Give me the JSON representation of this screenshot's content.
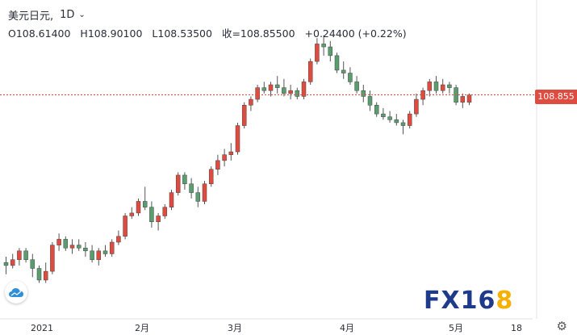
{
  "header": {
    "symbol": "美元日元,",
    "interval": "1D",
    "open": "O108.61400",
    "high": "H108.90100",
    "low": "L108.53500",
    "close": "收=108.85500",
    "change": "+0.24400 (+0.22%)"
  },
  "price_label": "108.855",
  "watermark": {
    "text_main": "FX16",
    "text_accent": "8"
  },
  "colors": {
    "up": "#e04b3f",
    "down": "#5a9e6f",
    "price_line": "#e04b3f",
    "brand": "#1e3a8a",
    "brand_accent": "#f5b000"
  },
  "icons": {
    "cloud": "cloud-icon",
    "settings": "gear-icon",
    "dropdown": "chevron-down-icon"
  },
  "chart_data": {
    "type": "candlestick",
    "symbol": "USD/JPY",
    "interval": "1D",
    "x_ticks": [
      "2021",
      "2月",
      "3月",
      "4月",
      "5月",
      "18"
    ],
    "last_price": 108.855,
    "ohlc_last": {
      "open": 108.614,
      "high": 108.901,
      "low": 108.535,
      "close": 108.855
    },
    "candles": [
      [
        103.1,
        103.3,
        102.7,
        103.0
      ],
      [
        103.0,
        103.4,
        102.9,
        103.2
      ],
      [
        103.2,
        103.6,
        103.0,
        103.5
      ],
      [
        103.5,
        103.6,
        103.1,
        103.2
      ],
      [
        103.2,
        103.4,
        102.6,
        102.9
      ],
      [
        102.9,
        103.0,
        102.4,
        102.5
      ],
      [
        102.5,
        103.1,
        102.4,
        102.8
      ],
      [
        102.8,
        103.8,
        102.7,
        103.7
      ],
      [
        103.7,
        104.1,
        103.5,
        103.9
      ],
      [
        103.9,
        104.0,
        103.5,
        103.6
      ],
      [
        103.6,
        103.9,
        103.4,
        103.7
      ],
      [
        103.7,
        103.9,
        103.5,
        103.6
      ],
      [
        103.6,
        103.8,
        103.3,
        103.5
      ],
      [
        103.5,
        103.7,
        103.1,
        103.2
      ],
      [
        103.2,
        103.6,
        103.0,
        103.5
      ],
      [
        103.5,
        103.7,
        103.3,
        103.4
      ],
      [
        103.4,
        103.9,
        103.3,
        103.8
      ],
      [
        103.8,
        104.2,
        103.7,
        104.0
      ],
      [
        104.0,
        104.8,
        103.9,
        104.7
      ],
      [
        104.7,
        105.0,
        104.6,
        104.8
      ],
      [
        104.8,
        105.3,
        104.7,
        105.2
      ],
      [
        105.2,
        105.7,
        104.9,
        105.0
      ],
      [
        105.0,
        105.2,
        104.3,
        104.5
      ],
      [
        104.5,
        104.8,
        104.2,
        104.7
      ],
      [
        104.7,
        105.1,
        104.6,
        105.0
      ],
      [
        105.0,
        105.6,
        104.9,
        105.5
      ],
      [
        105.5,
        106.2,
        105.4,
        106.1
      ],
      [
        106.1,
        106.2,
        105.6,
        105.8
      ],
      [
        105.8,
        106.0,
        105.3,
        105.5
      ],
      [
        105.5,
        105.7,
        105.0,
        105.2
      ],
      [
        105.2,
        105.9,
        105.1,
        105.8
      ],
      [
        105.8,
        106.4,
        105.7,
        106.3
      ],
      [
        106.3,
        106.8,
        106.1,
        106.6
      ],
      [
        106.6,
        107.0,
        106.4,
        106.8
      ],
      [
        106.8,
        107.2,
        106.6,
        106.9
      ],
      [
        106.9,
        107.9,
        106.8,
        107.8
      ],
      [
        107.8,
        108.6,
        107.7,
        108.5
      ],
      [
        108.5,
        108.8,
        108.3,
        108.7
      ],
      [
        108.7,
        109.2,
        108.6,
        109.1
      ],
      [
        109.1,
        109.3,
        108.9,
        109.0
      ],
      [
        109.0,
        109.3,
        108.8,
        109.2
      ],
      [
        109.2,
        109.5,
        108.9,
        109.1
      ],
      [
        109.1,
        109.4,
        108.8,
        108.9
      ],
      [
        108.9,
        109.2,
        108.7,
        109.0
      ],
      [
        109.0,
        109.1,
        108.7,
        108.8
      ],
      [
        108.8,
        109.4,
        108.7,
        109.3
      ],
      [
        109.3,
        110.1,
        109.2,
        110.0
      ],
      [
        110.0,
        110.8,
        109.9,
        110.6
      ],
      [
        110.6,
        110.9,
        110.2,
        110.5
      ],
      [
        110.5,
        110.7,
        110.0,
        110.2
      ],
      [
        110.2,
        110.3,
        109.6,
        109.7
      ],
      [
        109.7,
        110.0,
        109.4,
        109.6
      ],
      [
        109.6,
        109.8,
        109.2,
        109.3
      ],
      [
        109.3,
        109.5,
        108.9,
        109.0
      ],
      [
        109.0,
        109.2,
        108.6,
        108.8
      ],
      [
        108.8,
        109.0,
        108.3,
        108.5
      ],
      [
        108.5,
        108.6,
        108.1,
        108.2
      ],
      [
        108.2,
        108.4,
        108.0,
        108.1
      ],
      [
        108.1,
        108.3,
        107.9,
        108.0
      ],
      [
        108.0,
        108.2,
        107.8,
        107.9
      ],
      [
        107.9,
        108.0,
        107.5,
        107.8
      ],
      [
        107.8,
        108.3,
        107.7,
        108.2
      ],
      [
        108.2,
        108.9,
        108.1,
        108.7
      ],
      [
        108.7,
        109.1,
        108.5,
        109.0
      ],
      [
        109.0,
        109.4,
        108.8,
        109.3
      ],
      [
        109.3,
        109.5,
        108.9,
        109.0
      ],
      [
        109.0,
        109.4,
        108.9,
        109.2
      ],
      [
        109.2,
        109.3,
        108.9,
        109.1
      ],
      [
        109.1,
        109.2,
        108.5,
        108.6
      ],
      [
        108.6,
        108.9,
        108.4,
        108.8
      ],
      [
        108.6,
        108.9,
        108.5,
        108.85
      ]
    ]
  }
}
